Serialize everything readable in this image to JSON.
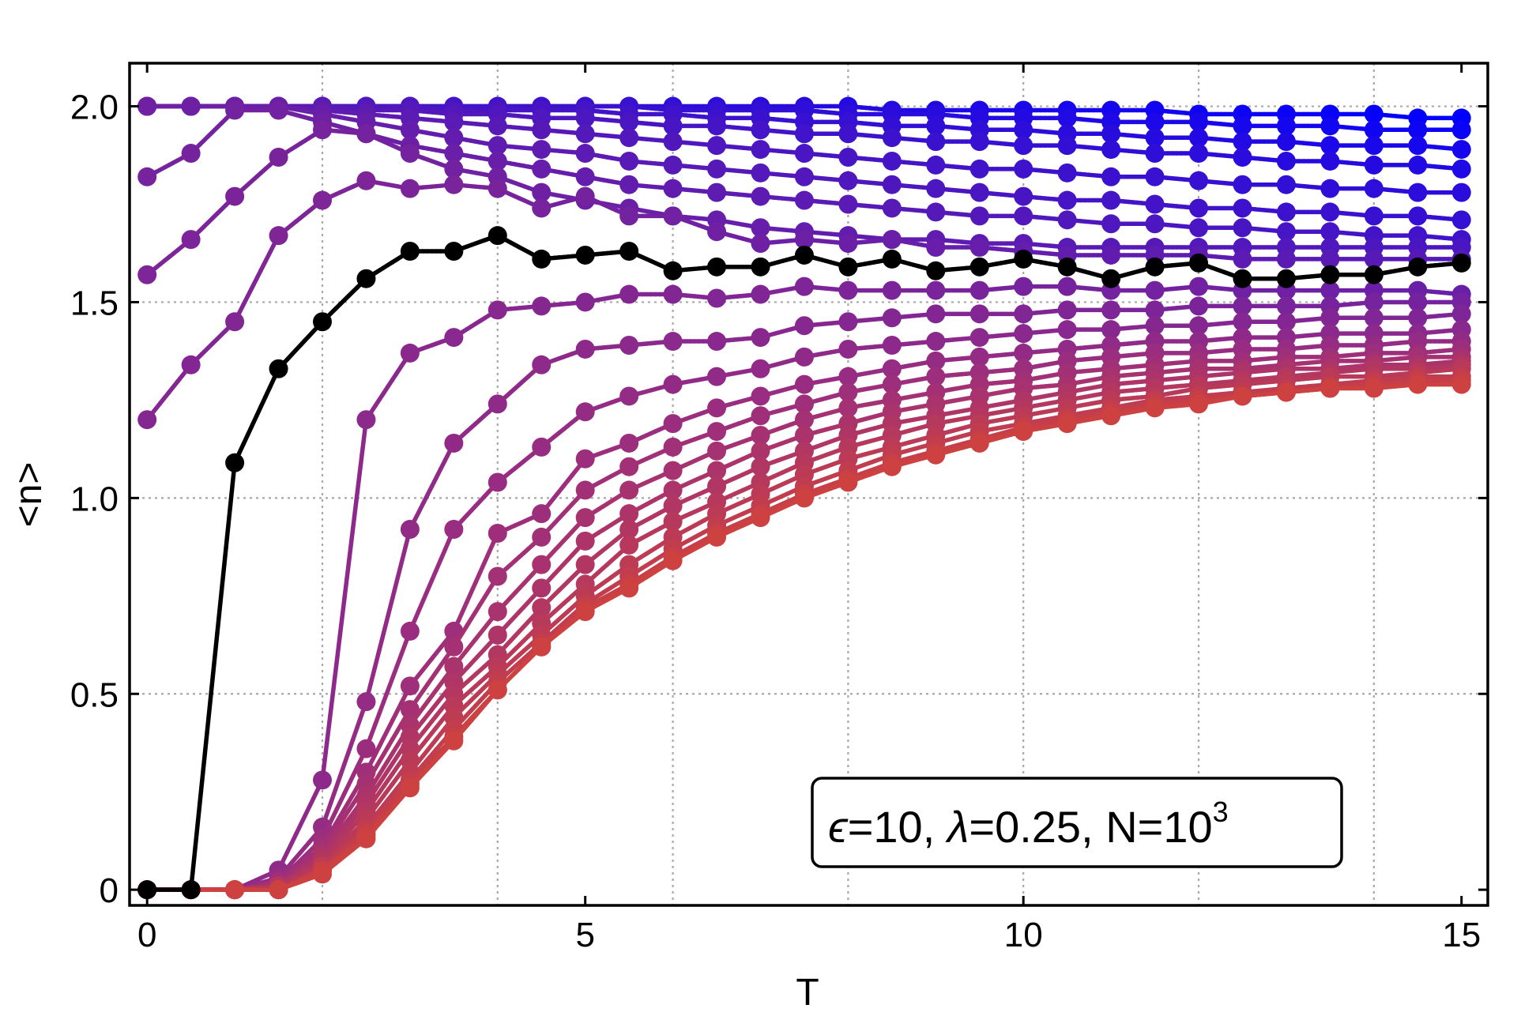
{
  "chart_data": {
    "type": "line",
    "xlabel": "T",
    "ylabel": "<n>",
    "xlim": [
      -0.2,
      15.3
    ],
    "ylim": [
      -0.04,
      2.11
    ],
    "xticks": [
      0,
      5,
      10,
      15
    ],
    "xtick_labels": [
      "0",
      "5",
      "10",
      "15"
    ],
    "yticks": [
      0,
      0.5,
      1.0,
      1.5,
      2.0
    ],
    "ytick_labels": [
      "0",
      "0.5",
      "1.0",
      "1.5",
      "2.0"
    ],
    "grid_x": [
      2,
      4,
      6,
      8,
      10,
      12,
      14
    ],
    "grid_y": [
      0.5,
      1.0,
      1.5,
      2.0
    ],
    "grid": true,
    "annotation": {
      "eps_symbol": "ϵ",
      "eps_text": "=10, ",
      "lambda_symbol": "λ",
      "lambda_text": "=0.25, N=10",
      "superscript": "3",
      "position": "lower-right"
    },
    "color_gradient": {
      "start": "#0000ff",
      "middle": "#9a2d80",
      "end": "#ff5500"
    },
    "highlight_color": "#000000",
    "x": [
      0,
      0.5,
      1,
      1.5,
      2,
      2.5,
      3,
      3.5,
      4,
      4.5,
      5,
      5.5,
      6,
      6.5,
      7,
      7.5,
      8,
      8.5,
      9,
      9.5,
      10,
      10.5,
      11,
      11.5,
      12,
      12.5,
      13,
      13.5,
      14,
      14.5,
      15
    ],
    "series": [
      {
        "highlight": false,
        "values": [
          2.0,
          2.0,
          2.0,
          2.0,
          2.0,
          2.0,
          2.0,
          2.0,
          2.0,
          2.0,
          2.0,
          2.0,
          2.0,
          2.0,
          2.0,
          2.0,
          2.0,
          1.99,
          1.99,
          1.99,
          1.99,
          1.99,
          1.99,
          1.99,
          1.98,
          1.98,
          1.98,
          1.98,
          1.98,
          1.97,
          1.97
        ]
      },
      {
        "highlight": false,
        "values": [
          2.0,
          2.0,
          2.0,
          2.0,
          2.0,
          2.0,
          2.0,
          2.0,
          2.0,
          2.0,
          2.0,
          2.0,
          1.99,
          1.99,
          1.99,
          1.99,
          1.98,
          1.98,
          1.98,
          1.97,
          1.97,
          1.97,
          1.96,
          1.96,
          1.96,
          1.95,
          1.95,
          1.95,
          1.94,
          1.94,
          1.94
        ]
      },
      {
        "highlight": false,
        "values": [
          2.0,
          2.0,
          2.0,
          2.0,
          2.0,
          2.0,
          2.0,
          1.99,
          1.99,
          1.99,
          1.99,
          1.98,
          1.98,
          1.97,
          1.97,
          1.96,
          1.96,
          1.95,
          1.95,
          1.94,
          1.94,
          1.93,
          1.93,
          1.92,
          1.92,
          1.91,
          1.91,
          1.9,
          1.9,
          1.9,
          1.89
        ]
      },
      {
        "highlight": false,
        "values": [
          2.0,
          2.0,
          2.0,
          2.0,
          2.0,
          1.99,
          1.99,
          1.98,
          1.98,
          1.97,
          1.97,
          1.96,
          1.95,
          1.95,
          1.94,
          1.93,
          1.93,
          1.92,
          1.91,
          1.91,
          1.9,
          1.9,
          1.89,
          1.88,
          1.88,
          1.87,
          1.86,
          1.86,
          1.85,
          1.85,
          1.84
        ]
      },
      {
        "highlight": false,
        "values": [
          2.0,
          2.0,
          2.0,
          2.0,
          1.99,
          1.98,
          1.97,
          1.96,
          1.95,
          1.94,
          1.93,
          1.92,
          1.91,
          1.9,
          1.89,
          1.88,
          1.87,
          1.86,
          1.85,
          1.84,
          1.84,
          1.83,
          1.82,
          1.82,
          1.81,
          1.8,
          1.8,
          1.79,
          1.79,
          1.78,
          1.78
        ]
      },
      {
        "highlight": false,
        "values": [
          2.0,
          2.0,
          2.0,
          2.0,
          1.98,
          1.96,
          1.94,
          1.92,
          1.9,
          1.89,
          1.88,
          1.86,
          1.85,
          1.84,
          1.83,
          1.82,
          1.81,
          1.8,
          1.79,
          1.78,
          1.77,
          1.76,
          1.76,
          1.75,
          1.74,
          1.74,
          1.73,
          1.73,
          1.72,
          1.72,
          1.71
        ]
      },
      {
        "highlight": false,
        "values": [
          1.82,
          1.88,
          1.99,
          1.99,
          1.96,
          1.93,
          1.9,
          1.88,
          1.86,
          1.84,
          1.82,
          1.8,
          1.79,
          1.78,
          1.77,
          1.76,
          1.75,
          1.74,
          1.73,
          1.72,
          1.72,
          1.71,
          1.7,
          1.7,
          1.69,
          1.69,
          1.68,
          1.68,
          1.67,
          1.67,
          1.66
        ]
      },
      {
        "highlight": false,
        "values": [
          1.57,
          1.66,
          1.77,
          1.87,
          1.94,
          1.93,
          1.88,
          1.84,
          1.82,
          1.78,
          1.76,
          1.74,
          1.72,
          1.71,
          1.69,
          1.68,
          1.67,
          1.66,
          1.66,
          1.65,
          1.65,
          1.64,
          1.64,
          1.64,
          1.64,
          1.64,
          1.64,
          1.64,
          1.64,
          1.64,
          1.64
        ]
      },
      {
        "highlight": false,
        "values": [
          1.2,
          1.34,
          1.45,
          1.67,
          1.76,
          1.81,
          1.79,
          1.8,
          1.79,
          1.74,
          1.77,
          1.72,
          1.72,
          1.68,
          1.65,
          1.66,
          1.65,
          1.66,
          1.64,
          1.64,
          1.63,
          1.62,
          1.62,
          1.62,
          1.62,
          1.61,
          1.61,
          1.61,
          1.61,
          1.61,
          1.61
        ]
      },
      {
        "highlight": true,
        "values": [
          0.0,
          0.0,
          1.09,
          1.33,
          1.45,
          1.56,
          1.63,
          1.63,
          1.67,
          1.61,
          1.62,
          1.63,
          1.58,
          1.59,
          1.59,
          1.62,
          1.59,
          1.61,
          1.58,
          1.59,
          1.61,
          1.59,
          1.56,
          1.59,
          1.6,
          1.56,
          1.56,
          1.57,
          1.57,
          1.59,
          1.6
        ]
      },
      {
        "highlight": false,
        "values": [
          0.0,
          0.0,
          0.0,
          0.05,
          0.28,
          1.2,
          1.37,
          1.41,
          1.48,
          1.49,
          1.5,
          1.52,
          1.52,
          1.51,
          1.52,
          1.54,
          1.53,
          1.53,
          1.53,
          1.53,
          1.54,
          1.54,
          1.53,
          1.53,
          1.54,
          1.53,
          1.53,
          1.53,
          1.53,
          1.53,
          1.52
        ]
      },
      {
        "highlight": false,
        "values": [
          0.0,
          0.0,
          0.0,
          0.03,
          0.16,
          0.48,
          0.92,
          1.14,
          1.24,
          1.34,
          1.38,
          1.39,
          1.4,
          1.4,
          1.41,
          1.44,
          1.45,
          1.46,
          1.47,
          1.47,
          1.47,
          1.48,
          1.48,
          1.48,
          1.49,
          1.49,
          1.49,
          1.49,
          1.5,
          1.5,
          1.5
        ]
      },
      {
        "highlight": false,
        "values": [
          0.0,
          0.0,
          0.0,
          0.02,
          0.13,
          0.36,
          0.66,
          0.92,
          1.04,
          1.13,
          1.22,
          1.26,
          1.29,
          1.31,
          1.33,
          1.36,
          1.38,
          1.39,
          1.4,
          1.41,
          1.42,
          1.43,
          1.43,
          1.44,
          1.44,
          1.45,
          1.45,
          1.46,
          1.46,
          1.46,
          1.47
        ]
      },
      {
        "highlight": false,
        "values": [
          0.0,
          0.0,
          0.0,
          0.02,
          0.11,
          0.3,
          0.52,
          0.66,
          0.91,
          0.96,
          1.1,
          1.14,
          1.19,
          1.23,
          1.26,
          1.29,
          1.31,
          1.33,
          1.35,
          1.36,
          1.37,
          1.38,
          1.39,
          1.4,
          1.4,
          1.41,
          1.41,
          1.42,
          1.42,
          1.42,
          1.43
        ]
      },
      {
        "highlight": false,
        "values": [
          0.0,
          0.0,
          0.0,
          0.01,
          0.1,
          0.27,
          0.46,
          0.62,
          0.8,
          0.9,
          1.02,
          1.08,
          1.13,
          1.17,
          1.21,
          1.24,
          1.27,
          1.29,
          1.31,
          1.32,
          1.33,
          1.35,
          1.36,
          1.37,
          1.37,
          1.38,
          1.38,
          1.39,
          1.39,
          1.4,
          1.4
        ]
      },
      {
        "highlight": false,
        "values": [
          0.0,
          0.0,
          0.0,
          0.01,
          0.09,
          0.24,
          0.42,
          0.57,
          0.71,
          0.83,
          0.95,
          1.02,
          1.07,
          1.12,
          1.16,
          1.2,
          1.23,
          1.25,
          1.27,
          1.29,
          1.3,
          1.32,
          1.33,
          1.34,
          1.35,
          1.35,
          1.36,
          1.36,
          1.37,
          1.37,
          1.38
        ]
      },
      {
        "highlight": false,
        "values": [
          0.0,
          0.0,
          0.0,
          0.01,
          0.08,
          0.22,
          0.39,
          0.53,
          0.65,
          0.77,
          0.89,
          0.96,
          1.02,
          1.07,
          1.12,
          1.16,
          1.19,
          1.22,
          1.24,
          1.26,
          1.28,
          1.29,
          1.31,
          1.32,
          1.33,
          1.33,
          1.34,
          1.35,
          1.35,
          1.36,
          1.36
        ]
      },
      {
        "highlight": false,
        "values": [
          0.0,
          0.0,
          0.0,
          0.01,
          0.07,
          0.2,
          0.36,
          0.5,
          0.6,
          0.72,
          0.83,
          0.92,
          0.98,
          1.03,
          1.08,
          1.12,
          1.16,
          1.19,
          1.21,
          1.23,
          1.25,
          1.27,
          1.29,
          1.3,
          1.31,
          1.32,
          1.33,
          1.33,
          1.34,
          1.34,
          1.35
        ]
      },
      {
        "highlight": false,
        "values": [
          0.0,
          0.0,
          0.0,
          0.0,
          0.06,
          0.18,
          0.33,
          0.47,
          0.57,
          0.68,
          0.78,
          0.88,
          0.94,
          0.99,
          1.04,
          1.09,
          1.13,
          1.16,
          1.19,
          1.21,
          1.23,
          1.25,
          1.27,
          1.28,
          1.29,
          1.3,
          1.31,
          1.32,
          1.33,
          1.33,
          1.34
        ]
      },
      {
        "highlight": false,
        "values": [
          0.0,
          0.0,
          0.0,
          0.0,
          0.06,
          0.16,
          0.3,
          0.44,
          0.55,
          0.65,
          0.75,
          0.83,
          0.9,
          0.96,
          1.01,
          1.06,
          1.1,
          1.13,
          1.16,
          1.19,
          1.21,
          1.23,
          1.25,
          1.26,
          1.28,
          1.29,
          1.3,
          1.31,
          1.31,
          1.32,
          1.33
        ]
      },
      {
        "highlight": false,
        "values": [
          0.0,
          0.0,
          0.0,
          0.0,
          0.05,
          0.15,
          0.28,
          0.41,
          0.53,
          0.63,
          0.73,
          0.8,
          0.87,
          0.93,
          0.98,
          1.03,
          1.07,
          1.11,
          1.14,
          1.17,
          1.19,
          1.21,
          1.23,
          1.25,
          1.26,
          1.27,
          1.28,
          1.29,
          1.3,
          1.31,
          1.31
        ]
      },
      {
        "highlight": false,
        "values": [
          0.0,
          0.0,
          0.0,
          0.0,
          0.05,
          0.14,
          0.27,
          0.39,
          0.51,
          0.62,
          0.72,
          0.78,
          0.85,
          0.91,
          0.96,
          1.01,
          1.05,
          1.09,
          1.12,
          1.15,
          1.18,
          1.2,
          1.22,
          1.24,
          1.25,
          1.26,
          1.27,
          1.28,
          1.29,
          1.3,
          1.3
        ]
      },
      {
        "highlight": false,
        "values": [
          0.0,
          0.0,
          0.0,
          0.0,
          0.04,
          0.13,
          0.26,
          0.38,
          0.51,
          0.62,
          0.71,
          0.77,
          0.84,
          0.9,
          0.95,
          1.0,
          1.04,
          1.08,
          1.11,
          1.14,
          1.17,
          1.19,
          1.21,
          1.23,
          1.24,
          1.26,
          1.27,
          1.28,
          1.28,
          1.29,
          1.29
        ]
      }
    ]
  }
}
